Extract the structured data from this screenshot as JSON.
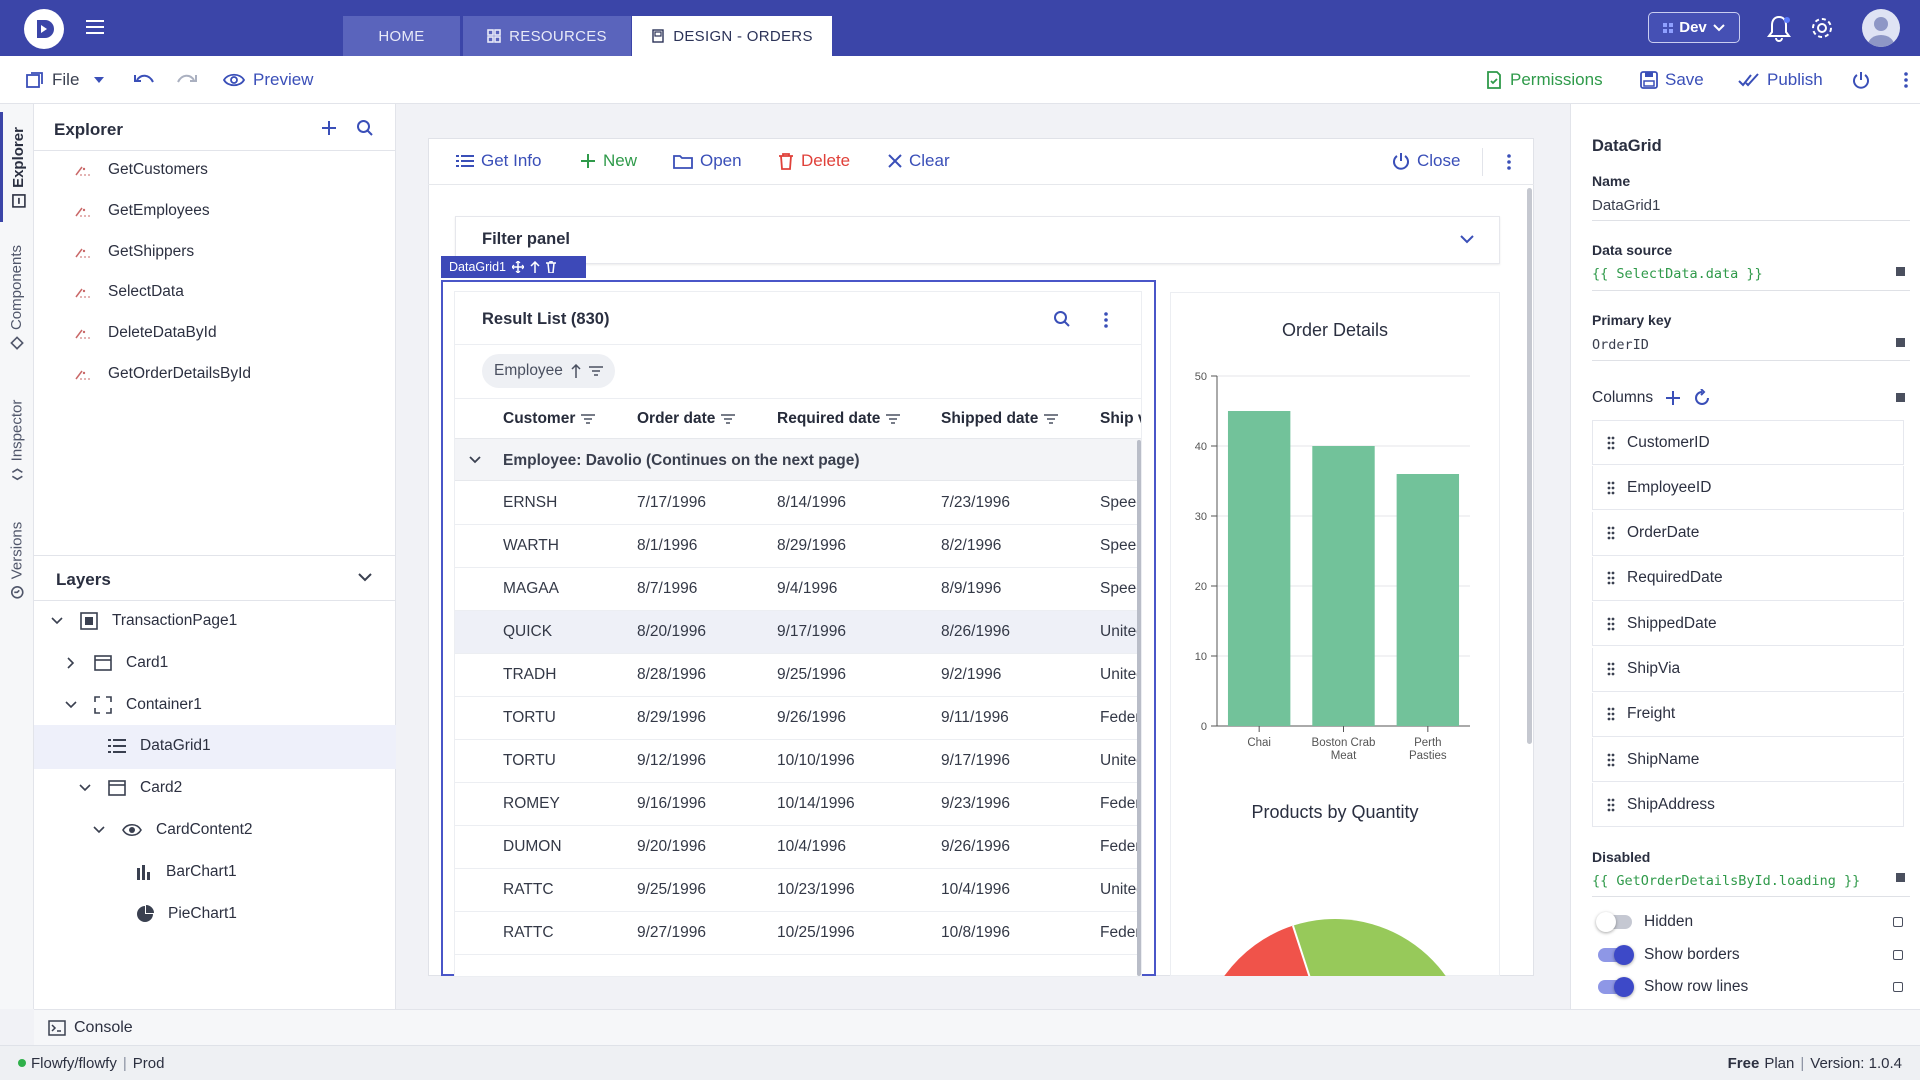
{
  "tabs": [
    {
      "label": "HOME"
    },
    {
      "label": "RESOURCES"
    },
    {
      "label": "DESIGN - ORDERS"
    }
  ],
  "env": {
    "label": "Dev"
  },
  "toolbar": {
    "file": "File",
    "preview": "Preview",
    "permissions": "Permissions",
    "save": "Save",
    "publish": "Publish"
  },
  "side_tabs": {
    "explorer": "Explorer",
    "components": "Components",
    "inspector": "Inspector",
    "versions": "Versions"
  },
  "explorer": {
    "title": "Explorer",
    "items": [
      {
        "label": "GetCustomers"
      },
      {
        "label": "GetEmployees"
      },
      {
        "label": "GetShippers"
      },
      {
        "label": "SelectData"
      },
      {
        "label": "DeleteDataById"
      },
      {
        "label": "GetOrderDetailsById"
      }
    ]
  },
  "layers": {
    "title": "Layers",
    "items": [
      {
        "label": "TransactionPage1"
      },
      {
        "label": "Card1"
      },
      {
        "label": "Container1"
      },
      {
        "label": "DataGrid1"
      },
      {
        "label": "Card2"
      },
      {
        "label": "CardContent2"
      },
      {
        "label": "BarChart1"
      },
      {
        "label": "PieChart1"
      }
    ]
  },
  "canvas_toolbar": {
    "get_info": "Get Info",
    "new": "New",
    "open": "Open",
    "delete": "Delete",
    "clear": "Clear",
    "close": "Close"
  },
  "filter_panel": {
    "title": "Filter panel"
  },
  "datagrid_badge": "DataGrid1",
  "grid": {
    "title": "Result List (830)",
    "group_chip": "Employee",
    "columns": [
      "Customer",
      "Order date",
      "Required date",
      "Shipped date",
      "Ship v"
    ],
    "group_row": "Employee: Davolio (Continues on the next page)",
    "rows": [
      {
        "customer": "ERNSH",
        "order": "7/17/1996",
        "required": "8/14/1996",
        "shipped": "7/23/1996",
        "ship": "Speed"
      },
      {
        "customer": "WARTH",
        "order": "8/1/1996",
        "required": "8/29/1996",
        "shipped": "8/2/1996",
        "ship": "Speed"
      },
      {
        "customer": "MAGAA",
        "order": "8/7/1996",
        "required": "9/4/1996",
        "shipped": "8/9/1996",
        "ship": "Speed"
      },
      {
        "customer": "QUICK",
        "order": "8/20/1996",
        "required": "9/17/1996",
        "shipped": "8/26/1996",
        "ship": "United"
      },
      {
        "customer": "TRADH",
        "order": "8/28/1996",
        "required": "9/25/1996",
        "shipped": "9/2/1996",
        "ship": "United"
      },
      {
        "customer": "TORTU",
        "order": "8/29/1996",
        "required": "9/26/1996",
        "shipped": "9/11/1996",
        "ship": "Feder"
      },
      {
        "customer": "TORTU",
        "order": "9/12/1996",
        "required": "10/10/1996",
        "shipped": "9/17/1996",
        "ship": "United"
      },
      {
        "customer": "ROMEY",
        "order": "9/16/1996",
        "required": "10/14/1996",
        "shipped": "9/23/1996",
        "ship": "Feder"
      },
      {
        "customer": "DUMON",
        "order": "9/20/1996",
        "required": "10/4/1996",
        "shipped": "9/26/1996",
        "ship": "Feder"
      },
      {
        "customer": "RATTC",
        "order": "9/25/1996",
        "required": "10/23/1996",
        "shipped": "10/4/1996",
        "ship": "United"
      },
      {
        "customer": "RATTC",
        "order": "9/27/1996",
        "required": "10/25/1996",
        "shipped": "10/8/1996",
        "ship": "Feder"
      }
    ]
  },
  "chart_data": [
    {
      "type": "bar",
      "title": "Order Details",
      "categories": [
        "Chai",
        "Boston Crab Meat",
        "Perth Pasties"
      ],
      "values": [
        45,
        40,
        36
      ],
      "ylim": [
        0,
        50
      ],
      "yticks": [
        0,
        10,
        20,
        30,
        40,
        50
      ],
      "color": "#72c29a"
    },
    {
      "type": "pie",
      "title": "Products by Quantity",
      "slices": [
        {
          "value": null,
          "color": "#f0534a"
        },
        {
          "value": null,
          "color": "#97c95a"
        }
      ]
    }
  ],
  "properties": {
    "title": "DataGrid",
    "name_label": "Name",
    "name_value": "DataGrid1",
    "datasource_label": "Data source",
    "datasource_value": "{{ SelectData.data }}",
    "pk_label": "Primary key",
    "pk_value": "OrderID",
    "columns_label": "Columns",
    "columns": [
      "CustomerID",
      "EmployeeID",
      "OrderDate",
      "RequiredDate",
      "ShippedDate",
      "ShipVia",
      "Freight",
      "ShipName",
      "ShipAddress"
    ],
    "disabled_label": "Disabled",
    "disabled_value": "{{ GetOrderDetailsById.loading }}",
    "toggles": [
      {
        "label": "Hidden",
        "on": false
      },
      {
        "label": "Show borders",
        "on": true
      },
      {
        "label": "Show row lines",
        "on": true
      }
    ]
  },
  "console": {
    "label": "Console"
  },
  "status": {
    "project": "Flowfy/flowfy",
    "env": "Prod",
    "plan_bold": "Free",
    "plan": "Plan",
    "version": "Version: 1.0.4"
  },
  "colors": {
    "topbar": "#3b45a8",
    "accent": "#3a4fb8",
    "delete": "#e0413a",
    "bar": "#72c29a"
  }
}
